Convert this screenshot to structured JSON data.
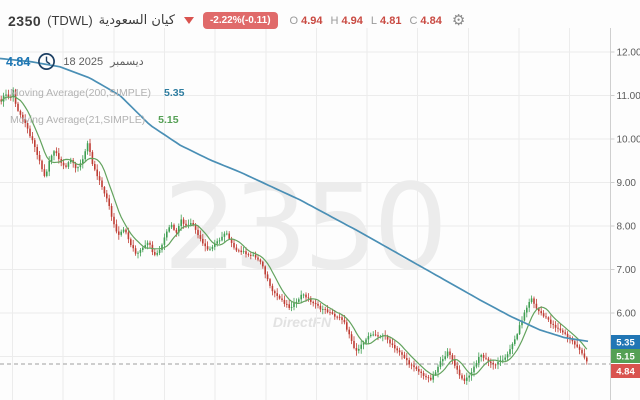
{
  "header": {
    "symbol": "2350",
    "exchange": "(TDWL)",
    "name_ar": "كيان السعودية",
    "change_badge": "-2.22%(-0.11)",
    "ohlc": [
      {
        "label": "O",
        "value": "4.94"
      },
      {
        "label": "H",
        "value": "4.94"
      },
      {
        "label": "L",
        "value": "4.81"
      },
      {
        "label": "C",
        "value": "4.84"
      }
    ],
    "gear_icon": "⚙"
  },
  "overlay": {
    "last_price": "4.84",
    "date_day_year": "18 2025",
    "date_month_ar": "ديسمبر",
    "legend": [
      {
        "label": "Moving Average(200,SIMPLE)",
        "value": "5.35"
      },
      {
        "label": "Moving Average(21,SIMPLE)",
        "value": "5.15"
      }
    ]
  },
  "watermark": {
    "symbol": "2350",
    "brand": "DirectFN"
  },
  "axis": {
    "labels": [
      "12.00",
      "11.00",
      "10.00",
      "9.00",
      "8.00",
      "7.00",
      "6.00"
    ],
    "label_prices": [
      12,
      11,
      10,
      9,
      8,
      7,
      6
    ],
    "badges": [
      {
        "text": "5.35",
        "color": "#2176b5"
      },
      {
        "text": "5.15",
        "color": "#55a055"
      },
      {
        "text": "4.84",
        "color": "#d9534f"
      }
    ]
  },
  "chart_data": {
    "type": "candlestick",
    "symbol": "2350",
    "market": "TDWL",
    "last_date": "18 December 2025",
    "current_price": 4.84,
    "change_pct": -2.22,
    "change_abs": -0.11,
    "today_ohlc": {
      "open": 4.94,
      "high": 4.94,
      "low": 4.81,
      "close": 4.84
    },
    "visible_price_range": [
      4.3,
      12.2
    ],
    "grid": true,
    "indicators": [
      {
        "name": "Moving Average",
        "period": 200,
        "method": "SIMPLE",
        "last_value": 5.35
      },
      {
        "name": "Moving Average",
        "period": 21,
        "method": "SIMPLE",
        "last_value": 5.15
      }
    ],
    "close_path": [
      [
        0,
        10.85
      ],
      [
        6,
        11.05
      ],
      [
        10,
        10.9
      ],
      [
        13,
        11.15
      ],
      [
        16,
        10.75
      ],
      [
        22,
        10.5
      ],
      [
        28,
        10.2
      ],
      [
        34,
        9.85
      ],
      [
        40,
        9.45
      ],
      [
        45,
        9.1
      ],
      [
        50,
        9.55
      ],
      [
        55,
        9.75
      ],
      [
        60,
        9.5
      ],
      [
        65,
        9.35
      ],
      [
        70,
        9.55
      ],
      [
        76,
        9.3
      ],
      [
        82,
        9.5
      ],
      [
        88,
        9.9
      ],
      [
        92,
        9.45
      ],
      [
        97,
        9.15
      ],
      [
        103,
        8.85
      ],
      [
        108,
        8.55
      ],
      [
        113,
        8.1
      ],
      [
        118,
        7.8
      ],
      [
        124,
        7.95
      ],
      [
        130,
        7.6
      ],
      [
        136,
        7.35
      ],
      [
        142,
        7.5
      ],
      [
        148,
        7.65
      ],
      [
        154,
        7.35
      ],
      [
        160,
        7.45
      ],
      [
        166,
        7.85
      ],
      [
        171,
        8.05
      ],
      [
        176,
        7.85
      ],
      [
        181,
        8.15
      ],
      [
        186,
        8.0
      ],
      [
        191,
        8.1
      ],
      [
        196,
        7.9
      ],
      [
        202,
        7.65
      ],
      [
        208,
        7.45
      ],
      [
        214,
        7.55
      ],
      [
        220,
        7.7
      ],
      [
        226,
        7.85
      ],
      [
        231,
        7.6
      ],
      [
        237,
        7.45
      ],
      [
        243,
        7.4
      ],
      [
        249,
        7.35
      ],
      [
        255,
        7.3
      ],
      [
        261,
        7.15
      ],
      [
        267,
        6.8
      ],
      [
        273,
        6.5
      ],
      [
        279,
        6.35
      ],
      [
        285,
        6.2
      ],
      [
        291,
        6.1
      ],
      [
        297,
        6.3
      ],
      [
        303,
        6.45
      ],
      [
        309,
        6.3
      ],
      [
        315,
        6.2
      ],
      [
        321,
        6.1
      ],
      [
        327,
        6.05
      ],
      [
        333,
        5.95
      ],
      [
        339,
        5.9
      ],
      [
        345,
        5.75
      ],
      [
        350,
        5.45
      ],
      [
        355,
        5.1
      ],
      [
        360,
        5.2
      ],
      [
        365,
        5.4
      ],
      [
        371,
        5.5
      ],
      [
        377,
        5.45
      ],
      [
        383,
        5.5
      ],
      [
        389,
        5.35
      ],
      [
        395,
        5.2
      ],
      [
        401,
        5.05
      ],
      [
        407,
        4.9
      ],
      [
        413,
        4.75
      ],
      [
        419,
        4.65
      ],
      [
        425,
        4.55
      ],
      [
        430,
        4.45
      ],
      [
        436,
        4.65
      ],
      [
        442,
        4.95
      ],
      [
        448,
        5.1
      ],
      [
        453,
        4.9
      ],
      [
        458,
        4.65
      ],
      [
        463,
        4.45
      ],
      [
        468,
        4.5
      ],
      [
        474,
        4.75
      ],
      [
        480,
        5.05
      ],
      [
        486,
        4.95
      ],
      [
        492,
        4.8
      ],
      [
        498,
        4.85
      ],
      [
        504,
        4.95
      ],
      [
        510,
        5.15
      ],
      [
        516,
        5.45
      ],
      [
        522,
        5.85
      ],
      [
        528,
        6.2
      ],
      [
        532,
        6.35
      ],
      [
        536,
        6.1
      ],
      [
        541,
        6.0
      ],
      [
        546,
        5.9
      ],
      [
        551,
        5.75
      ],
      [
        556,
        5.65
      ],
      [
        561,
        5.6
      ],
      [
        566,
        5.5
      ],
      [
        571,
        5.38
      ],
      [
        576,
        5.25
      ],
      [
        581,
        5.1
      ],
      [
        585,
        4.98
      ],
      [
        588,
        4.84
      ]
    ],
    "ma200_path": [
      [
        0,
        11.85
      ],
      [
        30,
        11.78
      ],
      [
        60,
        11.66
      ],
      [
        90,
        11.4
      ],
      [
        120,
        11.0
      ],
      [
        150,
        10.32
      ],
      [
        180,
        9.86
      ],
      [
        210,
        9.52
      ],
      [
        240,
        9.24
      ],
      [
        270,
        8.92
      ],
      [
        300,
        8.6
      ],
      [
        330,
        8.23
      ],
      [
        360,
        7.86
      ],
      [
        390,
        7.47
      ],
      [
        420,
        7.08
      ],
      [
        450,
        6.69
      ],
      [
        480,
        6.3
      ],
      [
        510,
        5.93
      ],
      [
        540,
        5.61
      ],
      [
        565,
        5.43
      ],
      [
        588,
        5.35
      ]
    ],
    "colors": {
      "up": "#3f9e52",
      "down": "#bf3d34",
      "ma200": "#4a8fb5",
      "ma21": "#63a35e",
      "grid": "#ececec",
      "axis_line": "#cfcfcf",
      "axis_text": "#5a5a5a",
      "dashed_last": "#a0a0a0"
    }
  }
}
